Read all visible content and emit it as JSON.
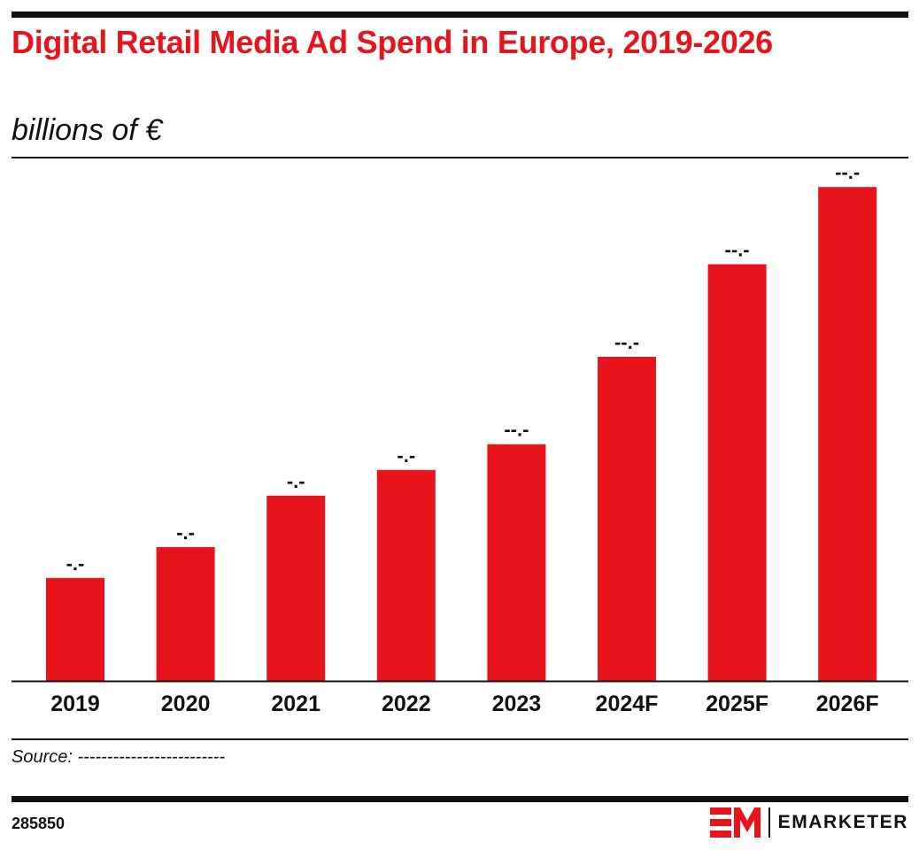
{
  "header": {
    "title": "Digital Retail Media Ad Spend in Europe, 2019-2026",
    "subtitle": "billions of €"
  },
  "footer": {
    "source": "Source: -------------------------",
    "chart_id": "285850",
    "brand_name": "EMARKETER",
    "brand_mark_letters": "EM"
  },
  "colors": {
    "bar": "#e8141c",
    "title": "#e8141c",
    "text": "#111111"
  },
  "chart_data": {
    "type": "bar",
    "title": "Digital Retail Media Ad Spend in Europe, 2019-2026",
    "subtitle": "billions of €",
    "categories": [
      "2019",
      "2020",
      "2021",
      "2022",
      "2023",
      "2024F",
      "2025F",
      "2026F"
    ],
    "values": [
      2.0,
      2.6,
      3.6,
      4.1,
      4.6,
      6.3,
      8.1,
      9.6
    ],
    "data_labels": [
      "-.-",
      "-.-",
      "-.-",
      "-.-",
      "--.-",
      "--.-",
      "--.-",
      "--.-"
    ],
    "ylim": [
      0,
      10
    ],
    "grid": false,
    "legend": "none"
  }
}
